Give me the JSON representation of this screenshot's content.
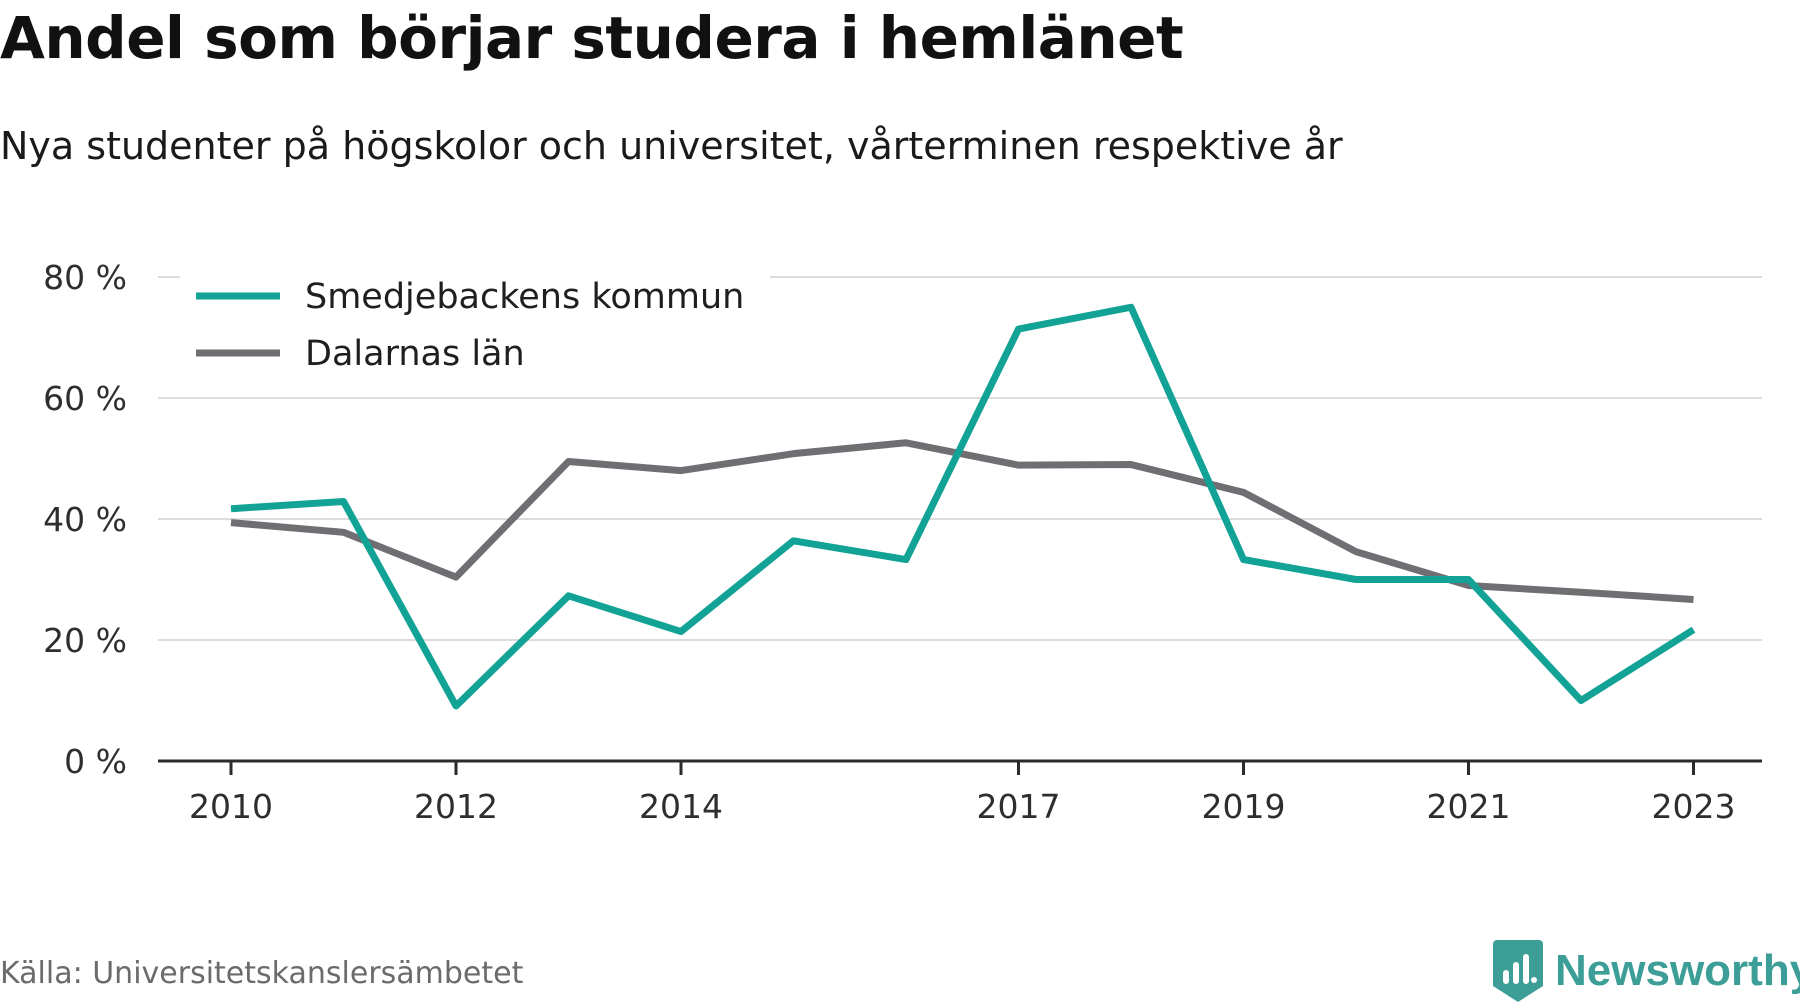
{
  "title": "Andel som börjar studera i hemlänet",
  "subtitle": "Nya studenter på högskolor och universitet, vårterminen respektive år",
  "source": "Källa: Universitetskanslersämbetet",
  "brand": {
    "name": "Newsworthy",
    "icon": "newsworthy-logo-icon",
    "color": "#3c9e96"
  },
  "chart_data": {
    "type": "line",
    "x": [
      2010,
      2011,
      2012,
      2013,
      2014,
      2015,
      2016,
      2017,
      2018,
      2019,
      2020,
      2021,
      2022,
      2023
    ],
    "x_tick_labels": [
      "2010",
      "2012",
      "2014",
      "2017",
      "2019",
      "2021",
      "2023"
    ],
    "y_tick_values": [
      0,
      20,
      40,
      60,
      80
    ],
    "y_tick_labels": [
      "0 %",
      "20 %",
      "40 %",
      "60 %",
      "80 %"
    ],
    "ylim": [
      0,
      80
    ],
    "grid": true,
    "legend_position": "top-left",
    "series": [
      {
        "name": "Smedjebackens kommun",
        "color": "#12a396",
        "values": [
          41.7,
          42.9,
          9.1,
          27.3,
          21.4,
          36.4,
          33.3,
          71.4,
          75.0,
          33.3,
          30.0,
          30.0,
          10.0,
          21.7
        ]
      },
      {
        "name": "Dalarnas län",
        "color": "#6f6e72",
        "values": [
          39.4,
          37.8,
          30.4,
          49.5,
          48.0,
          50.8,
          52.6,
          48.9,
          49.0,
          44.4,
          34.6,
          29.0,
          27.9,
          26.7
        ]
      }
    ]
  }
}
